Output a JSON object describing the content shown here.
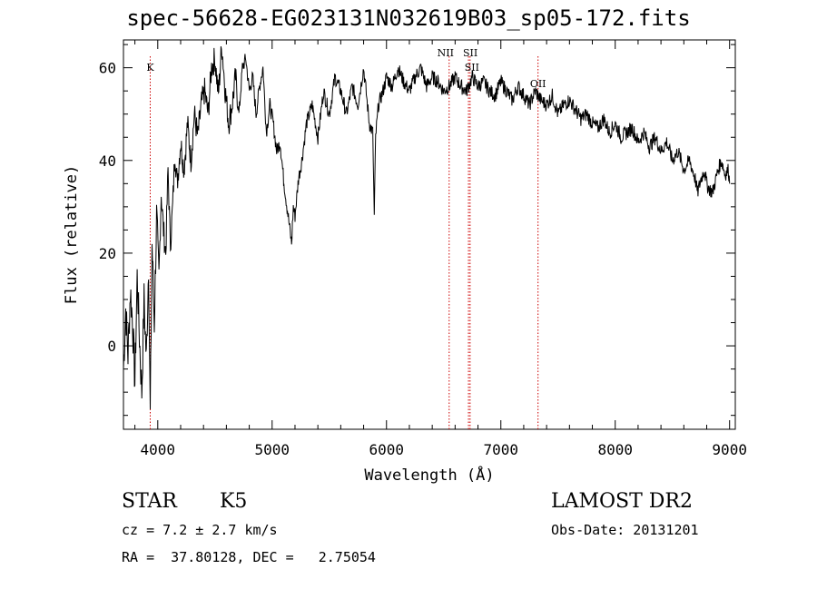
{
  "chart_data": {
    "type": "line",
    "title": "spec-56628-EG023131N032619B03_sp05-172.fits",
    "xlabel": "Wavelength (Å)",
    "ylabel": "Flux (relative)",
    "xlim": [
      3700,
      9050
    ],
    "ylim": [
      -18,
      66
    ],
    "xticks": [
      4000,
      5000,
      6000,
      7000,
      8000,
      9000
    ],
    "yticks": [
      0,
      20,
      40,
      60
    ],
    "line_color": "#000000",
    "marker_color": "#cc0000",
    "series": [
      {
        "x": [
          3700,
          3720,
          3740,
          3760,
          3780,
          3800,
          3820,
          3840,
          3860,
          3880,
          3900,
          3920,
          3934,
          3950,
          3970,
          3990,
          4010,
          4030,
          4050,
          4070,
          4090,
          4110,
          4130,
          4150,
          4170,
          4200,
          4230,
          4260,
          4290,
          4320,
          4350,
          4380,
          4410,
          4440,
          4470,
          4500,
          4530,
          4560,
          4590,
          4620,
          4650,
          4680,
          4710,
          4740,
          4770,
          4800,
          4830,
          4860,
          4890,
          4920,
          4950,
          4980,
          5010,
          5040,
          5070,
          5100,
          5130,
          5150,
          5170,
          5185,
          5200,
          5215,
          5230,
          5260,
          5300,
          5350,
          5400,
          5450,
          5500,
          5550,
          5600,
          5650,
          5700,
          5750,
          5800,
          5850,
          5880,
          5893,
          5905,
          5930,
          5970,
          6000,
          6050,
          6100,
          6150,
          6200,
          6250,
          6300,
          6350,
          6400,
          6450,
          6500,
          6550,
          6600,
          6650,
          6700,
          6750,
          6800,
          6850,
          6900,
          6950,
          7000,
          7050,
          7100,
          7150,
          7200,
          7250,
          7300,
          7350,
          7400,
          7450,
          7500,
          7550,
          7600,
          7650,
          7700,
          7750,
          7800,
          7850,
          7900,
          7950,
          8000,
          8050,
          8100,
          8150,
          8200,
          8250,
          8300,
          8350,
          8400,
          8450,
          8500,
          8550,
          8600,
          8650,
          8700,
          8720,
          8750,
          8780,
          8800,
          8820,
          8850,
          8880,
          8900,
          8930,
          8960,
          8990,
          9000
        ],
        "y": [
          -5,
          8,
          -2,
          12,
          5,
          -8,
          15,
          2,
          -10,
          10,
          -3,
          18,
          -15,
          22,
          5,
          28,
          15,
          33,
          25,
          20,
          38,
          22,
          30,
          42,
          35,
          44,
          38,
          48,
          40,
          50,
          45,
          52,
          55,
          50,
          60,
          62,
          54,
          65,
          55,
          48,
          52,
          58,
          50,
          60,
          62,
          55,
          58,
          50,
          56,
          60,
          46,
          52,
          48,
          42,
          44,
          36,
          30,
          26,
          22,
          30,
          28,
          32,
          36,
          40,
          48,
          52,
          45,
          55,
          50,
          58,
          55,
          50,
          56,
          52,
          60,
          48,
          46,
          28,
          45,
          52,
          55,
          58,
          56,
          60,
          57,
          55,
          58,
          60,
          56,
          58,
          57,
          55,
          56,
          58,
          56,
          55,
          58,
          56,
          57,
          55,
          54,
          57,
          55,
          53,
          56,
          54,
          52,
          55,
          53,
          52,
          54,
          50,
          52,
          53,
          51,
          49,
          50,
          48,
          47,
          49,
          46,
          48,
          45,
          46,
          47,
          44,
          46,
          43,
          45,
          42,
          44,
          40,
          42,
          38,
          40,
          36,
          33,
          36,
          38,
          35,
          34,
          33,
          36,
          38,
          40,
          37,
          38,
          35
        ]
      }
    ],
    "lines": [
      {
        "label": "K",
        "x": 3934
      },
      {
        "label": "NII",
        "x": 6548
      },
      {
        "label": "SII",
        "x": 6717
      },
      {
        "label": "SII",
        "x": 6731
      },
      {
        "label": "OII",
        "x": 7325
      }
    ]
  },
  "info": {
    "class": "STAR",
    "subclass": "K5",
    "survey": "LAMOST DR2",
    "cz": "cz = 7.2 ± 2.7 km/s",
    "obsdate": "Obs-Date: 20131201",
    "radec": "RA =  37.80128, DEC =   2.75054"
  }
}
